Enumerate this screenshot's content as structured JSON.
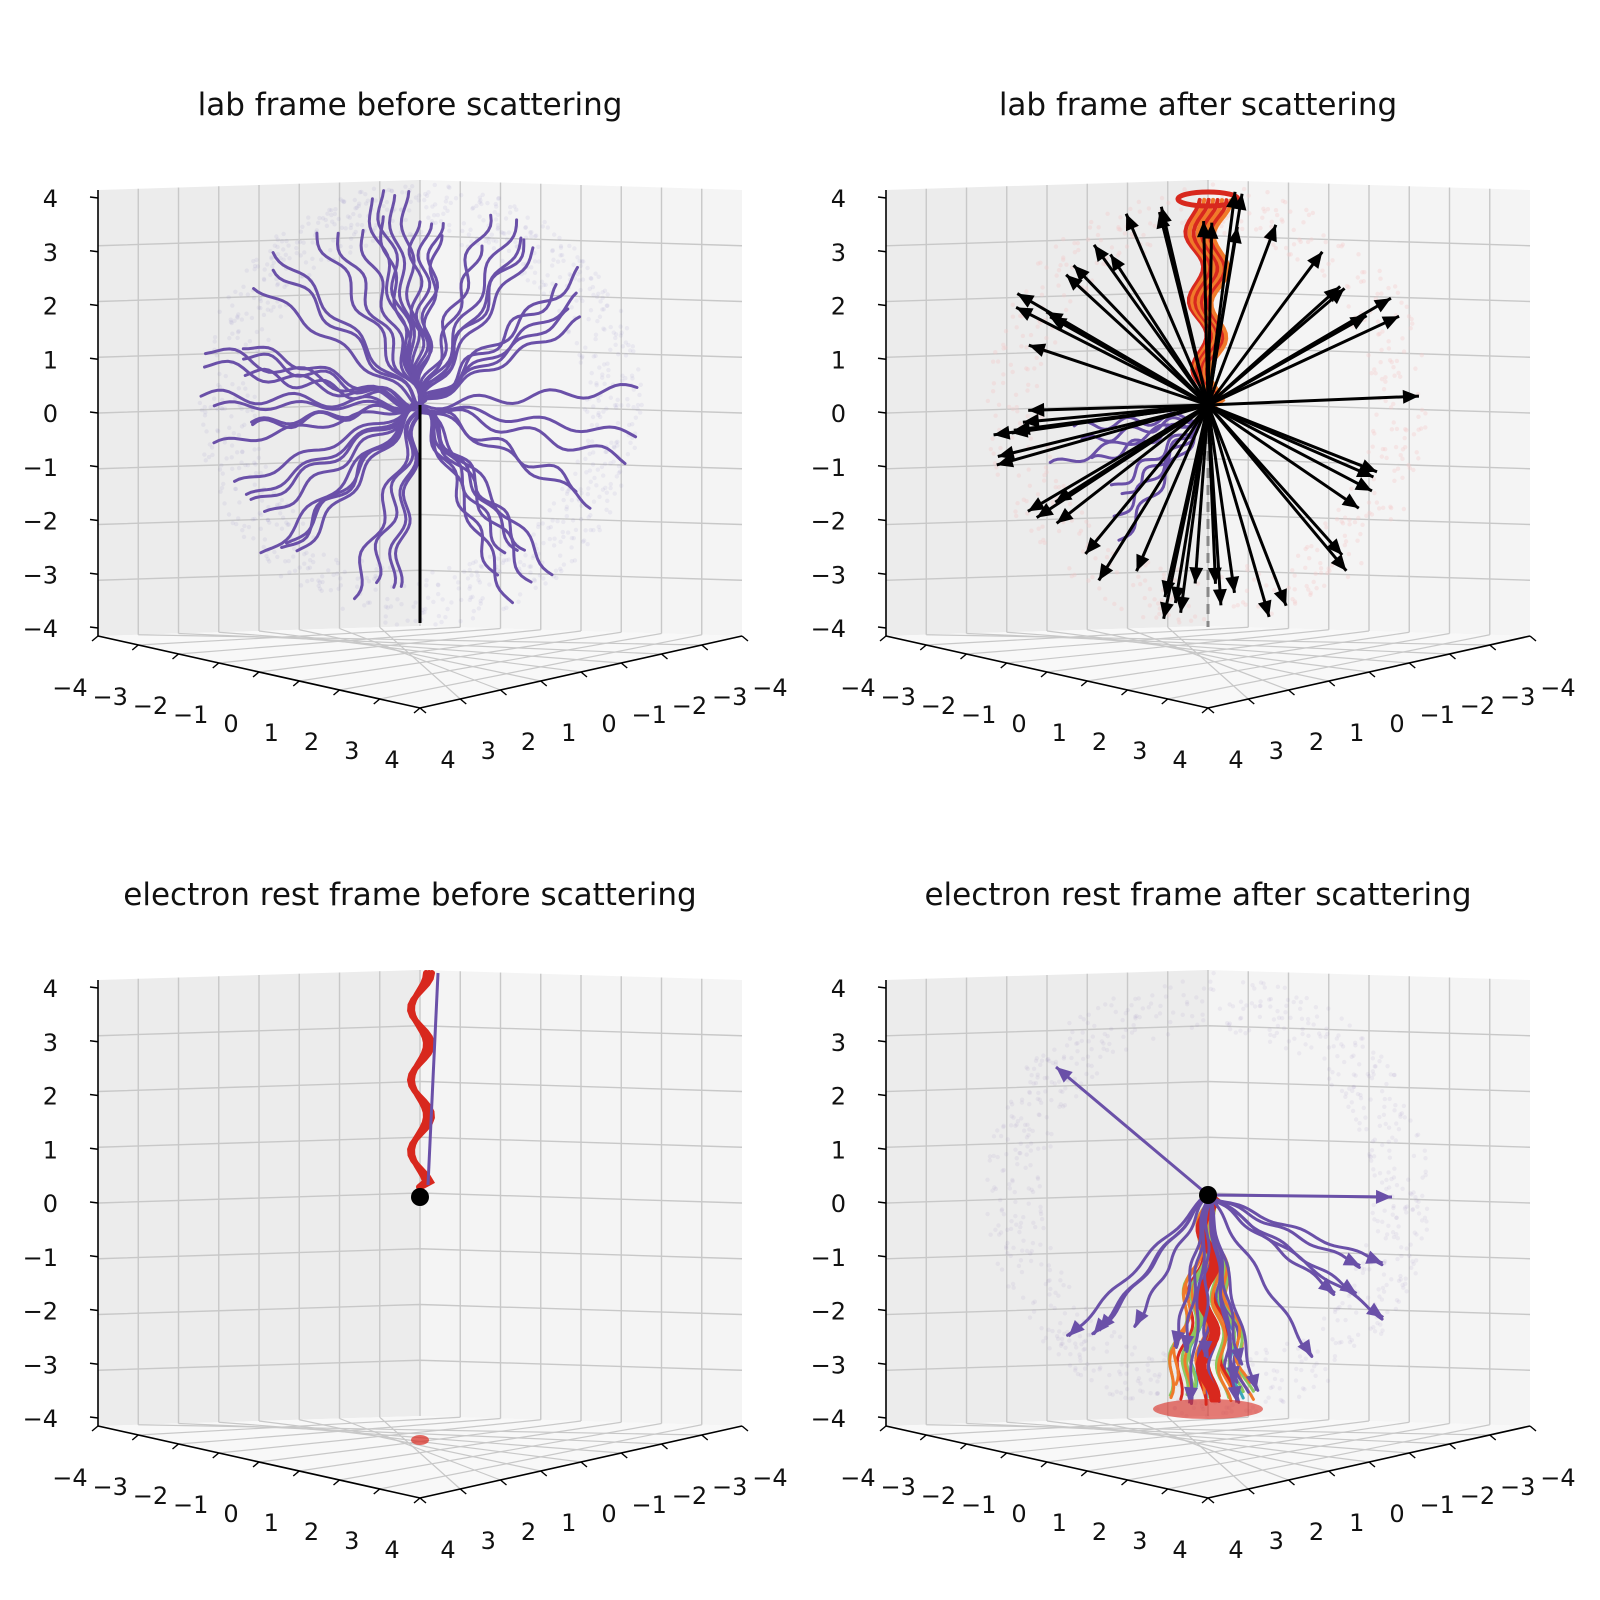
{
  "colors": {
    "pane_left": "#ececec",
    "pane_right": "#f4f4f4",
    "pane_floor": "#f8f8f8",
    "grid": "#c8c8c8",
    "axis": "#000000",
    "photon": "#6a50a8",
    "photon_cloud": "#7d6bb8",
    "electron": "#000000",
    "red": "#d8281e",
    "orange": "#f07a2a",
    "teal": "#3aa8b8",
    "green": "#8ac860",
    "dashed": "#888888",
    "faint_red": "#f3c8c8"
  },
  "axis_ticks": {
    "x_left": [
      "−4",
      "−3",
      "−2",
      "−1",
      "0",
      "1",
      "2",
      "3",
      "4"
    ],
    "y_right": [
      "4",
      "3",
      "2",
      "1",
      "0",
      "−1",
      "−2",
      "−3",
      "−4"
    ],
    "z": [
      "−4",
      "−3",
      "−2",
      "−1",
      "0",
      "1",
      "2",
      "3",
      "4"
    ]
  },
  "chart_data": [
    {
      "type": "scatter",
      "title": "lab frame before scattering",
      "xlim": [
        -4,
        4
      ],
      "ylim": [
        -4,
        4
      ],
      "zlim": [
        -4,
        4
      ],
      "grid": true,
      "content": "photon trajectories radiating from origin within a faint spherical point cloud of radius ~4; electron track along negative z axis"
    },
    {
      "type": "scatter",
      "title": "lab frame after scattering",
      "xlim": [
        -4,
        4
      ],
      "ylim": [
        -4,
        4
      ],
      "zlim": [
        -4,
        4
      ],
      "grid": true,
      "content": "black momentum arrows radiating from origin, orange/red bundle along +z up to z~4, dashed grey line along -z"
    },
    {
      "type": "scatter",
      "title": "electron rest frame before scattering",
      "xlim": [
        -4,
        4
      ],
      "ylim": [
        -4,
        4
      ],
      "zlim": [
        -4,
        4
      ],
      "grid": true,
      "content": "red wavy tube along +z from 0 to 4 with purple line beside it; black electron at origin"
    },
    {
      "type": "scatter",
      "title": "electron rest frame after scattering",
      "xlim": [
        -4,
        4
      ],
      "ylim": [
        -4,
        4
      ],
      "zlim": [
        -4,
        4
      ],
      "grid": true,
      "content": "purple trajectories with arrow heads spreading from origin, multicoloured bundle along -z down to z~-4; faint spherical point cloud"
    }
  ]
}
